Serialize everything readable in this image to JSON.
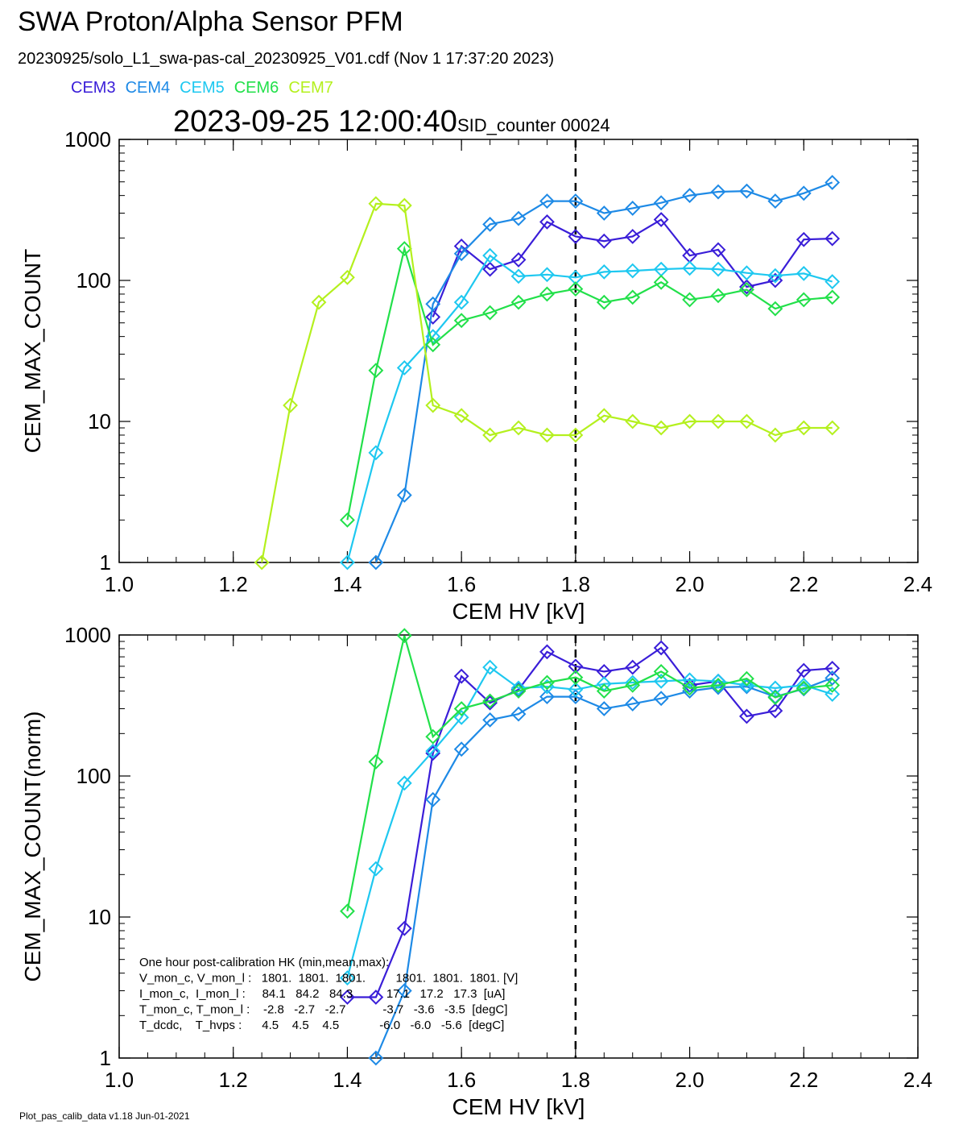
{
  "header": {
    "title": "SWA Proton/Alpha Sensor PFM",
    "file_line": "20230925/solo_L1_swa-pas-cal_20230925_V01.cdf  (Nov  1 17:37:20 2023)",
    "timestamp": "2023-09-25 12:00:40",
    "sid_counter": "SID_counter 00024"
  },
  "legend": [
    {
      "name": "CEM3",
      "color": "#3a1ed8"
    },
    {
      "name": "CEM4",
      "color": "#1e8ae6"
    },
    {
      "name": "CEM5",
      "color": "#1ec8f0"
    },
    {
      "name": "CEM6",
      "color": "#22e04a"
    },
    {
      "name": "CEM7",
      "color": "#b4f01e"
    }
  ],
  "footer": "Plot_pas_calib_data v1.18 Jun-01-2021",
  "hk_box": {
    "lines": [
      "One hour post-calibration HK (min,mean,max):",
      "V_mon_c, V_mon_l :   1801.  1801.  1801.         1801.  1801.  1801. [V]",
      "I_mon_c,  I_mon_l :     84.1   84.2   84.3          17.1   17.2   17.3  [uA]",
      "T_mon_c, T_mon_l :    -2.8   -2.7   -2.7           -3.7   -3.6   -3.5  [degC]",
      "T_dcdc,    T_hvps :      4.5    4.5    4.5            -6.0   -6.0   -5.6  [degC]"
    ]
  },
  "chart_data": [
    {
      "type": "line",
      "xlabel": "CEM HV [kV]",
      "ylabel": "CEM_MAX_COUNT",
      "xlim": [
        1.0,
        2.4
      ],
      "ylim": [
        1,
        1000
      ],
      "yscale": "log",
      "xticks": [
        "1.0",
        "1.2",
        "1.4",
        "1.6",
        "1.8",
        "2.0",
        "2.2",
        "2.4"
      ],
      "yticks": [
        "1",
        "10",
        "100",
        "1000"
      ],
      "vline_x": 1.8,
      "marker": "diamond",
      "series": [
        {
          "name": "CEM3",
          "color": "#3a1ed8",
          "x": [
            1.55,
            1.6,
            1.65,
            1.7,
            1.75,
            1.8,
            1.85,
            1.9,
            1.95,
            2.0,
            2.05,
            2.1,
            2.15,
            2.2,
            2.25
          ],
          "y": [
            55,
            175,
            120,
            140,
            260,
            205,
            190,
            205,
            270,
            150,
            165,
            90,
            100,
            195,
            198
          ]
        },
        {
          "name": "CEM4",
          "color": "#1e8ae6",
          "x": [
            1.45,
            1.5,
            1.55,
            1.6,
            1.65,
            1.7,
            1.75,
            1.8,
            1.85,
            1.9,
            1.95,
            2.0,
            2.05,
            2.1,
            2.15,
            2.2,
            2.25
          ],
          "y": [
            1.0,
            3.0,
            68,
            155,
            250,
            275,
            365,
            365,
            300,
            325,
            355,
            400,
            425,
            430,
            365,
            415,
            495
          ]
        },
        {
          "name": "CEM5",
          "color": "#1ec8f0",
          "x": [
            1.4,
            1.45,
            1.5,
            1.55,
            1.6,
            1.65,
            1.7,
            1.75,
            1.8,
            1.85,
            1.9,
            1.95,
            2.0,
            2.05,
            2.1,
            2.15,
            2.2,
            2.25
          ],
          "y": [
            1.0,
            6.0,
            24,
            40,
            70,
            150,
            107,
            110,
            105,
            115,
            117,
            120,
            122,
            120,
            113,
            108,
            112,
            98
          ]
        },
        {
          "name": "CEM6",
          "color": "#22e04a",
          "x": [
            1.4,
            1.45,
            1.5,
            1.55,
            1.6,
            1.65,
            1.7,
            1.75,
            1.8,
            1.85,
            1.9,
            1.95,
            2.0,
            2.05,
            2.1,
            2.15,
            2.2,
            2.25
          ],
          "y": [
            2.0,
            23,
            168,
            35,
            52,
            59,
            70,
            80,
            87,
            70,
            76,
            97,
            73,
            78,
            86,
            63,
            73,
            76
          ]
        },
        {
          "name": "CEM7",
          "color": "#b4f01e",
          "x": [
            1.25,
            1.3,
            1.35,
            1.4,
            1.45,
            1.5,
            1.55,
            1.6,
            1.65,
            1.7,
            1.75,
            1.8,
            1.85,
            1.9,
            1.95,
            2.0,
            2.05,
            2.1,
            2.15,
            2.2,
            2.25
          ],
          "y": [
            1.0,
            13,
            70,
            105,
            350,
            340,
            13,
            11,
            8,
            9,
            8,
            8,
            11,
            10,
            9,
            10,
            10,
            10,
            8,
            9,
            9
          ]
        }
      ]
    },
    {
      "type": "line",
      "xlabel": "CEM HV [kV]",
      "ylabel": "CEM_MAX_COUNT(norm)",
      "xlim": [
        1.0,
        2.4
      ],
      "ylim": [
        1,
        1000
      ],
      "yscale": "log",
      "xticks": [
        "1.0",
        "1.2",
        "1.4",
        "1.6",
        "1.8",
        "2.0",
        "2.2",
        "2.4"
      ],
      "yticks": [
        "1",
        "10",
        "100",
        "1000"
      ],
      "vline_x": 1.8,
      "marker": "diamond",
      "series": [
        {
          "name": "CEM3",
          "color": "#3a1ed8",
          "x": [
            1.4,
            1.45,
            1.5,
            1.55,
            1.6,
            1.65,
            1.7,
            1.75,
            1.8,
            1.85,
            1.9,
            1.95,
            2.0,
            2.05,
            2.1,
            2.15,
            2.2,
            2.25
          ],
          "y": [
            2.7,
            2.7,
            8.3,
            145,
            510,
            330,
            410,
            760,
            600,
            550,
            590,
            810,
            440,
            470,
            265,
            290,
            560,
            580
          ]
        },
        {
          "name": "CEM4",
          "color": "#1e8ae6",
          "x": [
            1.45,
            1.5,
            1.55,
            1.6,
            1.65,
            1.7,
            1.75,
            1.8,
            1.85,
            1.9,
            1.95,
            2.0,
            2.05,
            2.1,
            2.15,
            2.2,
            2.25
          ],
          "y": [
            1.0,
            3.0,
            68,
            155,
            250,
            275,
            365,
            365,
            300,
            325,
            355,
            400,
            425,
            430,
            365,
            415,
            495
          ]
        },
        {
          "name": "CEM5",
          "color": "#1ec8f0",
          "x": [
            1.4,
            1.45,
            1.5,
            1.55,
            1.6,
            1.65,
            1.7,
            1.75,
            1.8,
            1.85,
            1.9,
            1.95,
            2.0,
            2.05,
            2.1,
            2.15,
            2.2,
            2.25
          ],
          "y": [
            3.7,
            22,
            89,
            150,
            260,
            590,
            420,
            430,
            410,
            450,
            460,
            470,
            480,
            470,
            440,
            420,
            440,
            380
          ]
        },
        {
          "name": "CEM6",
          "color": "#22e04a",
          "x": [
            1.4,
            1.45,
            1.5,
            1.55,
            1.6,
            1.65,
            1.7,
            1.75,
            1.8,
            1.85,
            1.9,
            1.95,
            2.0,
            2.05,
            2.1,
            2.15,
            2.2,
            2.25
          ],
          "y": [
            11,
            126,
            990,
            190,
            300,
            340,
            400,
            460,
            500,
            400,
            440,
            550,
            420,
            440,
            490,
            360,
            420,
            440
          ]
        }
      ]
    }
  ]
}
